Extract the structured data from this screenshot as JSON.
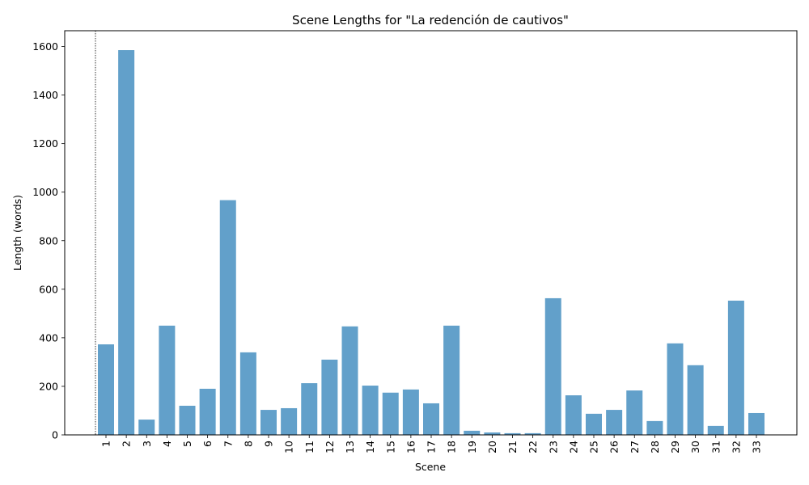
{
  "chart_data": {
    "type": "bar",
    "title": "Scene Lengths for \"La redención de cautivos\"",
    "xlabel": "Scene",
    "ylabel": "Length (words)",
    "ylim": [
      0,
      1665
    ],
    "yticks": [
      0,
      200,
      400,
      600,
      800,
      1000,
      1200,
      1400,
      1600
    ],
    "grid": false,
    "bar_color": "#62a0ca",
    "categories": [
      "1",
      "2",
      "3",
      "4",
      "5",
      "6",
      "7",
      "8",
      "9",
      "10",
      "11",
      "12",
      "13",
      "14",
      "15",
      "16",
      "17",
      "18",
      "19",
      "20",
      "21",
      "22",
      "23",
      "24",
      "25",
      "26",
      "27",
      "28",
      "29",
      "30",
      "31",
      "32",
      "33"
    ],
    "values": [
      373,
      1585,
      63,
      450,
      120,
      190,
      967,
      340,
      103,
      110,
      213,
      310,
      447,
      203,
      174,
      187,
      130,
      450,
      17,
      10,
      7,
      7,
      563,
      163,
      87,
      103,
      183,
      57,
      377,
      287,
      37,
      553,
      90
    ],
    "reference_line": {
      "style": "dotted",
      "position": "left of scene 1"
    }
  }
}
